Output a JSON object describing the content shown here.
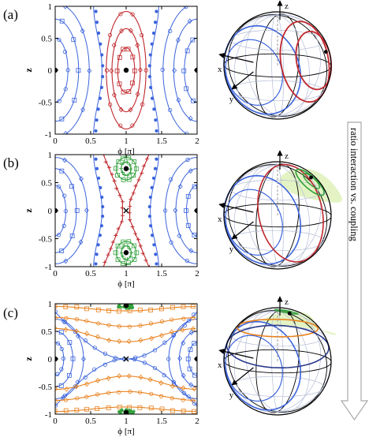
{
  "chart_data": [
    {
      "panel": "(a)",
      "type": "scatter",
      "subtype": "phase-space contour plot with simulated data points",
      "xlabel": "ϕ [π]",
      "ylabel": "z",
      "xlim": [
        0,
        2
      ],
      "ylim": [
        -1,
        1
      ],
      "xticks": [
        "0",
        "0.5",
        "1",
        "1.5",
        "2"
      ],
      "yticks": [
        "-1",
        "-0.5",
        "0",
        "0.5",
        "1"
      ],
      "fixed_points": [
        [
          0,
          0
        ],
        [
          1,
          0
        ],
        [
          2,
          0
        ]
      ],
      "contour_regions": [
        {
          "color": "#3c64dc",
          "center": [
            0,
            0
          ],
          "extent": "left oscillation region"
        },
        {
          "color": "#3c64dc",
          "center": [
            2,
            0
          ],
          "extent": "right oscillation region"
        },
        {
          "color": "#c0282d",
          "center": [
            1,
            0
          ],
          "extent": "island around ϕ=π"
        }
      ],
      "bloch_sphere": {
        "axes": [
          "z",
          "x",
          "y"
        ]
      }
    },
    {
      "panel": "(b)",
      "type": "scatter",
      "subtype": "phase-space contour plot with simulated data points",
      "xlabel": "ϕ [π]",
      "ylabel": "z",
      "xlim": [
        0,
        2
      ],
      "ylim": [
        -1,
        1
      ],
      "xticks": [
        "0",
        "0.5",
        "1",
        "1.5",
        "2"
      ],
      "yticks": [
        "-1",
        "-0.5",
        "0",
        "0.5",
        "1"
      ],
      "fixed_points": [
        [
          0,
          0
        ],
        [
          1,
          0.75
        ],
        [
          1,
          -0.75
        ],
        [
          2,
          0
        ]
      ],
      "saddle_points": [
        [
          1,
          0
        ]
      ],
      "contour_regions": [
        {
          "color": "#3c64dc",
          "center": [
            0,
            0
          ],
          "extent": "left oscillation region"
        },
        {
          "color": "#3c64dc",
          "center": [
            2,
            0
          ],
          "extent": "right oscillation region"
        },
        {
          "color": "#c0282d",
          "center": [
            1,
            0
          ],
          "extent": "separatrix around ϕ=π"
        },
        {
          "color": "#32a03c",
          "center": [
            1,
            0.75
          ],
          "extent": "upper island"
        },
        {
          "color": "#32a03c",
          "center": [
            1,
            -0.75
          ],
          "extent": "lower island"
        }
      ],
      "bloch_sphere": {
        "axes": [
          "z",
          "x",
          "y"
        ]
      }
    },
    {
      "panel": "(c)",
      "type": "scatter",
      "subtype": "phase-space contour plot with simulated data points",
      "xlabel": "ϕ [π]",
      "ylabel": "z",
      "xlim": [
        0,
        2
      ],
      "ylim": [
        -1,
        1
      ],
      "xticks": [
        "0",
        "0.5",
        "1",
        "1.5",
        "2"
      ],
      "yticks": [
        "-1",
        "-0.5",
        "0",
        "0.5",
        "1"
      ],
      "fixed_points": [
        [
          0,
          0
        ],
        [
          1,
          0.97
        ],
        [
          1,
          -0.97
        ],
        [
          2,
          0
        ]
      ],
      "saddle_points": [
        [
          1,
          0
        ]
      ],
      "contour_regions": [
        {
          "color": "#3c64dc",
          "center": [
            0,
            0
          ],
          "extent": "left oscillation region"
        },
        {
          "color": "#3c64dc",
          "center": [
            2,
            0
          ],
          "extent": "right oscillation region"
        },
        {
          "color": "#e8821e",
          "center": [
            1,
            0.8
          ],
          "extent": "upper running region"
        },
        {
          "color": "#e8821e",
          "center": [
            1,
            -0.8
          ],
          "extent": "lower running region"
        },
        {
          "color": "#32a03c",
          "center": [
            1,
            0.97
          ],
          "extent": "upper island"
        },
        {
          "color": "#32a03c",
          "center": [
            1,
            -0.97
          ],
          "extent": "lower island"
        }
      ],
      "bloch_sphere": {
        "axes": [
          "z",
          "x",
          "y"
        ]
      }
    }
  ],
  "arrow_label": "ratio interaction vs. coupling",
  "colors": {
    "blue": "#3c64dc",
    "red": "#c0282d",
    "green": "#32a03c",
    "orange": "#e8821e",
    "light_green_fill": "#e3f3c4",
    "sphere_grid": "#b4bcd6"
  }
}
